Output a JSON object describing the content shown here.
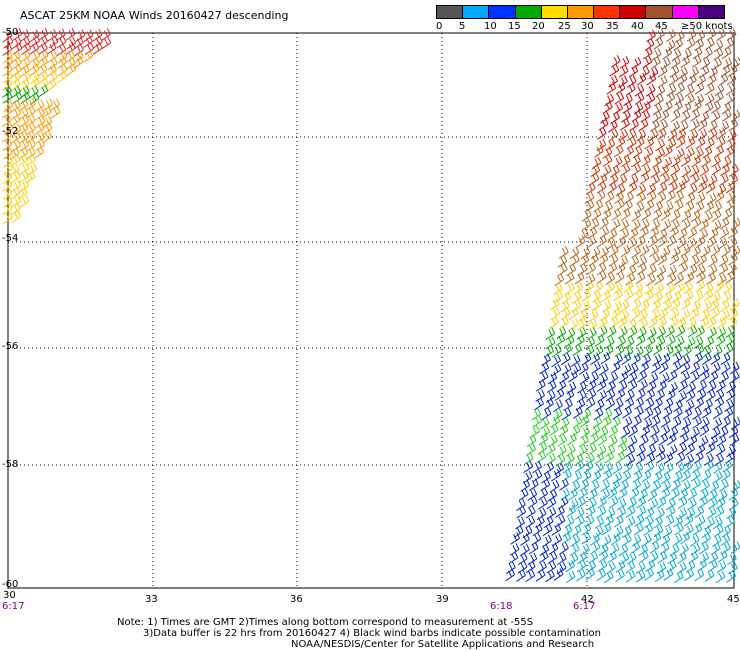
{
  "title": "ASCAT 25KM NOAA Winds 20160427 descending",
  "legend": {
    "colors": [
      "#555555",
      "#00aaff",
      "#0033ff",
      "#00aa00",
      "#ffdd00",
      "#ff9900",
      "#ff3300",
      "#cc0000",
      "#a0522d",
      "#ff00ff",
      "#4b0082"
    ],
    "labels": [
      "0",
      "5",
      "10",
      "15",
      "20",
      "25",
      "30",
      "35",
      "40",
      "45",
      "≥50 knots"
    ]
  },
  "axes": {
    "x_ticks": [
      "30",
      "33",
      "36",
      "39",
      "42",
      "45"
    ],
    "y_ticks": [
      "-50",
      "-52",
      "-54",
      "-56",
      "-58",
      "-60"
    ]
  },
  "times": [
    "6:17",
    "6:18",
    "6:17"
  ],
  "notes": {
    "line1": "Note: 1) Times are GMT 2)Times along bottom correspond to measurement at -55S",
    "line2": "3)Data buffer is 22 hrs from 20160427 4) Black wind barbs indicate possible contamination",
    "line3": "NOAA/NESDIS/Center for Satellite Applications and Research"
  }
}
